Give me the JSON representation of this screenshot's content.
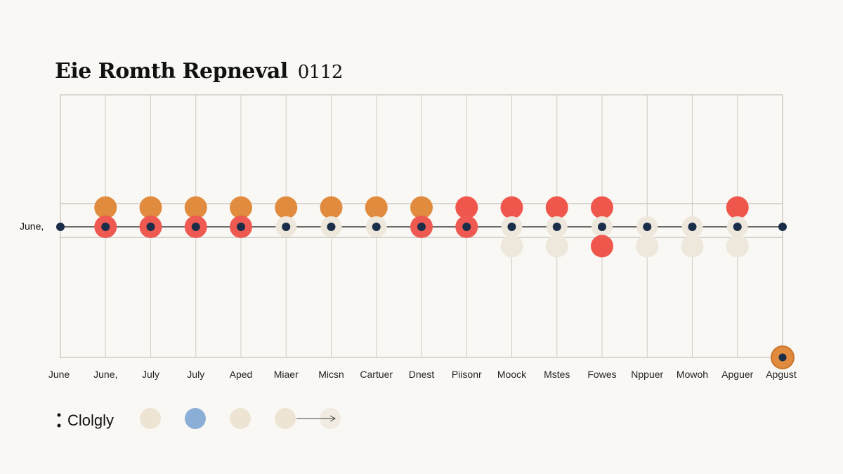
{
  "chart_data": {
    "type": "scatter",
    "title": "Eie Romth Repneval",
    "subtitle": "0112",
    "row_label": "June,",
    "categories": [
      "June",
      "June,",
      "July",
      "July",
      "Aped",
      "Miaer",
      "Micsn",
      "Cartuer",
      "Dnest",
      "Piisonr",
      "Moock",
      "Mstes",
      "Fowes",
      "Nppuer",
      "Mowoh",
      "Apguer",
      "Apgust"
    ],
    "series": [
      {
        "color": "#e08b3e",
        "values": [
          null,
          1,
          1,
          1,
          1,
          1,
          1,
          1,
          1,
          null,
          null,
          null,
          null,
          null,
          null,
          null,
          null
        ]
      },
      {
        "color": "#f0574c",
        "values": [
          null,
          null,
          null,
          null,
          null,
          null,
          null,
          null,
          null,
          1,
          1,
          1,
          1,
          null,
          null,
          1,
          null
        ]
      },
      {
        "color": "#ee5a52",
        "values": [
          null,
          0,
          0,
          0,
          0,
          null,
          null,
          null,
          0,
          0,
          null,
          null,
          null,
          null,
          null,
          null,
          null
        ]
      },
      {
        "color": "#ede7dc",
        "values": [
          null,
          null,
          null,
          null,
          null,
          0,
          0,
          0,
          null,
          null,
          0,
          0,
          0,
          0,
          0,
          0,
          null
        ]
      },
      {
        "color": "#ede7dc",
        "values": [
          null,
          null,
          null,
          null,
          null,
          null,
          null,
          null,
          null,
          null,
          -1,
          -1,
          null,
          -1,
          -1,
          -1,
          null
        ]
      },
      {
        "color": "#f0574c",
        "values": [
          null,
          null,
          null,
          null,
          null,
          null,
          null,
          null,
          null,
          null,
          null,
          null,
          -1,
          null,
          null,
          null,
          null
        ]
      },
      {
        "color": "#1a2e4a",
        "values": [
          0,
          0,
          0,
          0,
          0,
          0,
          0,
          0,
          0,
          0,
          0,
          0,
          0,
          0,
          0,
          0,
          0
        ]
      },
      {
        "color": "#e08b3e",
        "values": [
          null,
          null,
          null,
          null,
          null,
          null,
          null,
          null,
          null,
          null,
          null,
          null,
          null,
          null,
          null,
          null,
          -6
        ]
      }
    ],
    "ylim": [
      -6,
      6
    ],
    "grid": true
  },
  "legend": {
    "title": "Clolgly",
    "swatches": [
      "#ede4d4",
      "#8aaed6",
      "#ede4d4",
      "#ede4d4",
      "#f1ebe1"
    ]
  }
}
